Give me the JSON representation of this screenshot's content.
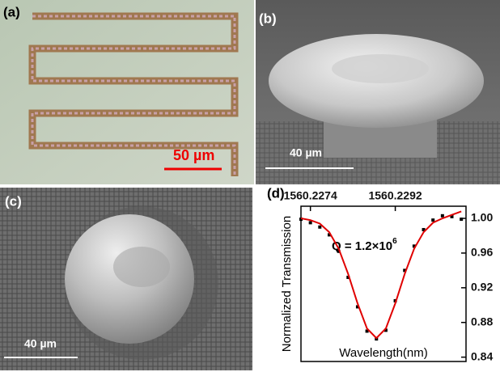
{
  "panels": [
    {
      "label": "(a)",
      "scale_bar": "50 µm"
    },
    {
      "label": "(b)",
      "scale_bar": "40 µm"
    },
    {
      "label": "(c)",
      "scale_bar": "40 µm"
    },
    {
      "label": "(d)"
    }
  ],
  "chart_data": {
    "type": "line",
    "y_label": "Normalized Transmission",
    "x_label": "Wavelength(nm)",
    "annotation": {
      "text": "Q = 1.2×10",
      "superscript": "6"
    },
    "x": [
      1560.2272,
      1560.2274,
      1560.2276,
      1560.2278,
      1560.228,
      1560.2282,
      1560.2284,
      1560.2286,
      1560.2288,
      1560.229,
      1560.2292,
      1560.2294,
      1560.2296,
      1560.2298,
      1560.23,
      1560.2302,
      1560.2304,
      1560.2306
    ],
    "series": [
      {
        "color": "#000000",
        "mode": "markers",
        "values": [
          0.999,
          0.995,
          0.99,
          0.981,
          0.962,
          0.932,
          0.898,
          0.87,
          0.861,
          0.871,
          0.905,
          0.94,
          0.968,
          0.987,
          0.998,
          1.003,
          1.002,
          0.999
        ]
      },
      {
        "color": "#e00000",
        "mode": "line",
        "values": [
          1.0,
          0.998,
          0.994,
          0.984,
          0.965,
          0.936,
          0.902,
          0.873,
          0.862,
          0.873,
          0.902,
          0.936,
          0.965,
          0.984,
          0.995,
          1.0,
          1.004,
          1.008
        ]
      }
    ],
    "xlim": [
      1560.2272,
      1560.2307
    ],
    "xticks": [
      1560.2274,
      1560.2292
    ],
    "ylim": [
      0.835,
      1.014
    ],
    "yticks": [
      {
        "value": 1,
        "label": "1.00"
      },
      0.96,
      0.92,
      0.88,
      0.84
    ]
  }
}
